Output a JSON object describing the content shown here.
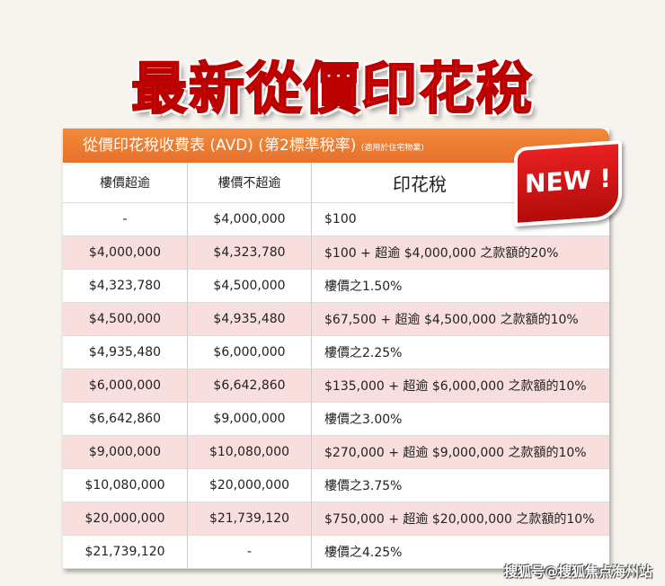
{
  "title": "最新從價印花稅",
  "caption": "從價印花稅收費表 (AVD) (第2標準稅率)",
  "caption_note": "(適用於住宅物業)",
  "badge": "NEW !",
  "headers": [
    "樓價超逾",
    "樓價不超逾",
    "印花稅"
  ],
  "rows": [
    [
      "-",
      "$4,000,000",
      "$100"
    ],
    [
      "$4,000,000",
      "$4,323,780",
      "$100 + 超逾 $4,000,000 之款額的20%"
    ],
    [
      "$4,323,780",
      "$4,500,000",
      "樓價之1.50%"
    ],
    [
      "$4,500,000",
      "$4,935,480",
      "$67,500 + 超逾 $4,500,000 之款額的10%"
    ],
    [
      "$4,935,480",
      "$6,000,000",
      "樓價之2.25%"
    ],
    [
      "$6,000,000",
      "$6,642,860",
      "$135,000 + 超逾 $6,000,000 之款額的10%"
    ],
    [
      "$6,642,860",
      "$9,000,000",
      "樓價之3.00%"
    ],
    [
      "$9,000,000",
      "$10,080,000",
      "$270,000 + 超逾 $9,000,000 之款額的10%"
    ],
    [
      "$10,080,000",
      "$20,000,000",
      "樓價之3.75%"
    ],
    [
      "$20,000,000",
      "$21,739,120",
      "$750,000 + 超逾 $20,000,000 之款額的10%"
    ],
    [
      "$21,739,120",
      "-",
      "樓價之4.25%"
    ]
  ],
  "watermark": "搜狐号@搜狐焦点海州站",
  "colors": {
    "title": "#e3171d",
    "caption_bg": "#ec7a30",
    "pink_row": "#f9dede"
  }
}
